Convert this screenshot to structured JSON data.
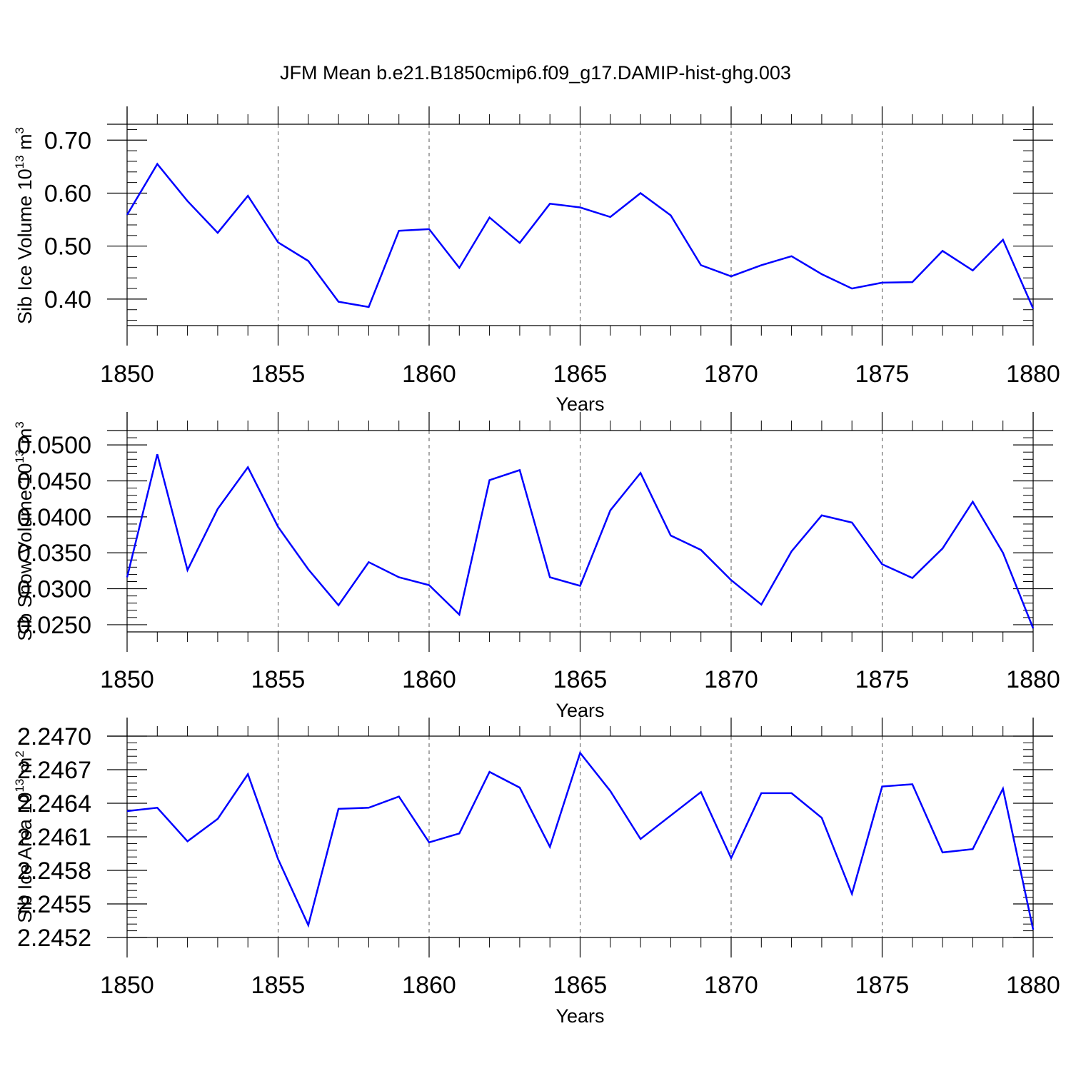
{
  "title": "JFM Mean b.e21.B1850cmip6.f09_g17.DAMIP-hist-ghg.003",
  "colors": {
    "series": "#0000ff",
    "axis": "#000000",
    "grid": "#555555"
  },
  "chart_data": [
    {
      "type": "line",
      "xlabel": "Years",
      "ylabel": "Sib Ice Volume 10",
      "ylabel_sup": "13",
      "ylabel_unit": " m",
      "ylabel_unit_sup": "3",
      "xlim": [
        1850,
        1880
      ],
      "ylim": [
        0.35,
        0.73
      ],
      "xticks": [
        1850,
        1855,
        1860,
        1865,
        1870,
        1875,
        1880
      ],
      "yticks": [
        0.4,
        0.5,
        0.6,
        0.7
      ],
      "ytick_labels": [
        "0.40",
        "0.50",
        "0.60",
        "0.70"
      ],
      "grid": "vertical dashed at major x ticks",
      "x": [
        1850,
        1851,
        1852,
        1853,
        1854,
        1855,
        1856,
        1857,
        1858,
        1859,
        1860,
        1861,
        1862,
        1863,
        1864,
        1865,
        1866,
        1867,
        1868,
        1869,
        1870,
        1871,
        1872,
        1873,
        1874,
        1875,
        1876,
        1877,
        1878,
        1879,
        1880
      ],
      "y": [
        0.559,
        0.655,
        0.585,
        0.525,
        0.595,
        0.507,
        0.472,
        0.395,
        0.385,
        0.529,
        0.532,
        0.459,
        0.554,
        0.506,
        0.58,
        0.573,
        0.555,
        0.6,
        0.558,
        0.464,
        0.443,
        0.464,
        0.481,
        0.447,
        0.42,
        0.431,
        0.432,
        0.491,
        0.454,
        0.512,
        0.382
      ]
    },
    {
      "type": "line",
      "xlabel": "Years",
      "ylabel": "Sib Snow Volume 10",
      "ylabel_sup": "13",
      "ylabel_unit": " m",
      "ylabel_unit_sup": "3",
      "xlim": [
        1850,
        1880
      ],
      "ylim": [
        0.024,
        0.052
      ],
      "xticks": [
        1850,
        1855,
        1860,
        1865,
        1870,
        1875,
        1880
      ],
      "yticks": [
        0.025,
        0.03,
        0.035,
        0.04,
        0.045,
        0.05
      ],
      "ytick_labels": [
        "0.0250",
        "0.0300",
        "0.0350",
        "0.0400",
        "0.0450",
        "0.0500"
      ],
      "grid": "vertical dashed at major x ticks",
      "x": [
        1850,
        1851,
        1852,
        1853,
        1854,
        1855,
        1856,
        1857,
        1858,
        1859,
        1860,
        1861,
        1862,
        1863,
        1864,
        1865,
        1866,
        1867,
        1868,
        1869,
        1870,
        1871,
        1872,
        1873,
        1874,
        1875,
        1876,
        1877,
        1878,
        1879,
        1880
      ],
      "y": [
        0.0316,
        0.0487,
        0.0326,
        0.0411,
        0.0469,
        0.0386,
        0.0327,
        0.0277,
        0.0337,
        0.0316,
        0.0305,
        0.0264,
        0.0451,
        0.0465,
        0.0316,
        0.0304,
        0.0409,
        0.0461,
        0.0374,
        0.0354,
        0.0312,
        0.0278,
        0.0352,
        0.0402,
        0.0392,
        0.0334,
        0.0315,
        0.0356,
        0.0421,
        0.035,
        0.0245
      ]
    },
    {
      "type": "line",
      "xlabel": "Years",
      "ylabel": "Sib Ice Area 10",
      "ylabel_sup": "13",
      "ylabel_unit": " m",
      "ylabel_unit_sup": "2",
      "xlim": [
        1850,
        1880
      ],
      "ylim": [
        2.2452,
        2.247
      ],
      "xticks": [
        1850,
        1855,
        1860,
        1865,
        1870,
        1875,
        1880
      ],
      "yticks": [
        2.2452,
        2.2455,
        2.2458,
        2.2461,
        2.2464,
        2.2467,
        2.247
      ],
      "ytick_labels": [
        "2.2452",
        "2.2455",
        "2.2458",
        "2.2461",
        "2.2464",
        "2.2467",
        "2.2470"
      ],
      "grid": "vertical dashed at major x ticks",
      "x": [
        1850,
        1851,
        1852,
        1853,
        1854,
        1855,
        1856,
        1857,
        1858,
        1859,
        1860,
        1861,
        1862,
        1863,
        1864,
        1865,
        1866,
        1867,
        1868,
        1869,
        1870,
        1871,
        1872,
        1873,
        1874,
        1875,
        1876,
        1877,
        1878,
        1879,
        1880
      ],
      "y": [
        2.24633,
        2.24636,
        2.24606,
        2.24626,
        2.24666,
        2.2459,
        2.24531,
        2.24635,
        2.24636,
        2.24646,
        2.24605,
        2.24613,
        2.24668,
        2.24654,
        2.24601,
        2.24685,
        2.24651,
        2.24608,
        2.24629,
        2.2465,
        2.24591,
        2.24649,
        2.24649,
        2.24627,
        2.24559,
        2.24655,
        2.24657,
        2.24596,
        2.24599,
        2.24653,
        2.24527
      ]
    }
  ]
}
